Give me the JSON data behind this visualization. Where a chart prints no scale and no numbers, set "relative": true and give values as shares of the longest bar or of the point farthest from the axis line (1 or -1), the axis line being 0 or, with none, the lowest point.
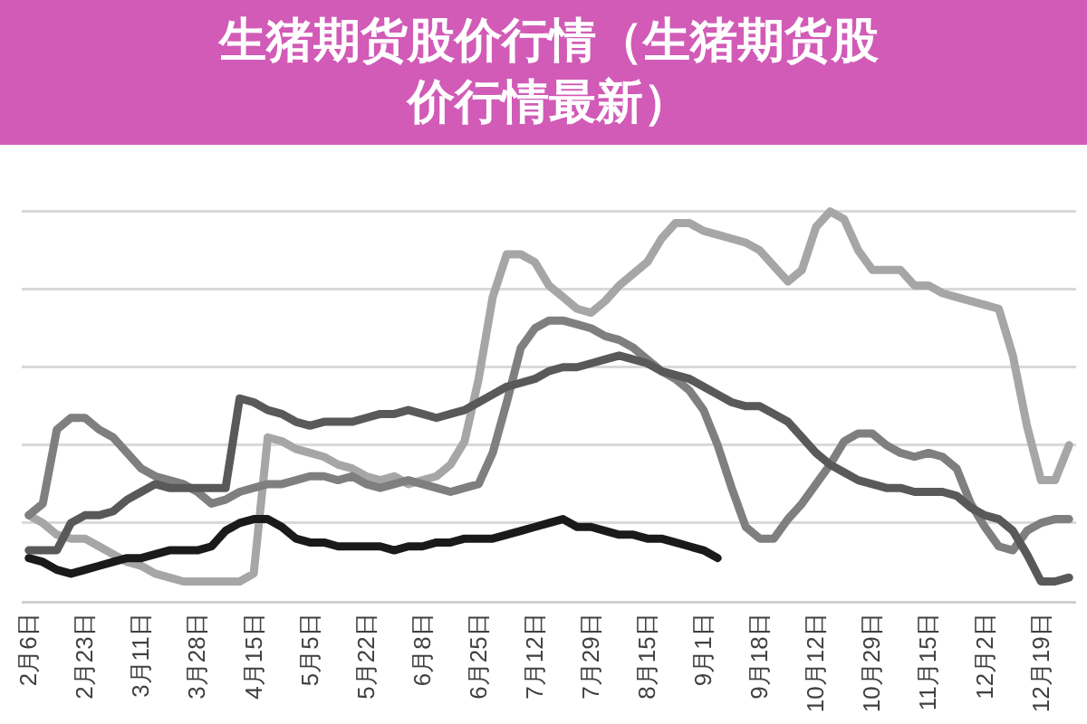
{
  "chart_data": {
    "type": "line",
    "title": "生猪期货股价行情（生猪期货股价行情最新）",
    "categories": [
      "2月6日",
      null,
      null,
      null,
      "2月23日",
      null,
      null,
      null,
      "3月11日",
      null,
      null,
      null,
      "3月28日",
      null,
      null,
      null,
      "4月15日",
      null,
      null,
      null,
      "5月5日",
      null,
      null,
      null,
      "5月22日",
      null,
      null,
      null,
      "6月8日",
      null,
      null,
      null,
      "6月25日",
      null,
      null,
      null,
      "7月12日",
      null,
      null,
      null,
      "7月29日",
      null,
      null,
      null,
      "8月15日",
      null,
      null,
      null,
      "9月1日",
      null,
      null,
      null,
      "9月18日",
      null,
      null,
      null,
      "10月12日",
      null,
      null,
      null,
      "10月29日",
      null,
      null,
      null,
      "11月15日",
      null,
      null,
      null,
      "12月2日",
      null,
      null,
      null,
      "12月19日",
      null,
      null
    ],
    "relative": true,
    "grid": "y",
    "series": [
      {
        "color": "#a6a6a6",
        "values": [
          0.22,
          0.2,
          0.17,
          0.16,
          0.16,
          0.14,
          0.12,
          0.1,
          0.09,
          0.07,
          0.06,
          0.05,
          0.05,
          0.05,
          0.05,
          0.05,
          0.07,
          0.42,
          0.41,
          0.39,
          0.38,
          0.37,
          0.35,
          0.34,
          0.32,
          0.31,
          0.32,
          0.3,
          0.31,
          0.32,
          0.35,
          0.41,
          0.57,
          0.78,
          0.89,
          0.89,
          0.87,
          0.81,
          0.78,
          0.75,
          0.74,
          0.77,
          0.81,
          0.84,
          0.87,
          0.93,
          0.97,
          0.97,
          0.95,
          0.94,
          0.93,
          0.92,
          0.9,
          0.86,
          0.82,
          0.85,
          0.96,
          1.0,
          0.98,
          0.9,
          0.85,
          0.85,
          0.85,
          0.81,
          0.81,
          0.79,
          0.78,
          0.77,
          0.76,
          0.75,
          0.63,
          0.45,
          0.31,
          0.31,
          0.4
        ]
      },
      {
        "color": "#7f7f7f",
        "values": [
          0.22,
          0.25,
          0.44,
          0.47,
          0.47,
          0.44,
          0.42,
          0.38,
          0.34,
          0.32,
          0.31,
          0.3,
          0.28,
          0.25,
          0.26,
          0.28,
          0.29,
          0.3,
          0.3,
          0.31,
          0.32,
          0.32,
          0.31,
          0.32,
          0.3,
          0.29,
          0.3,
          0.31,
          0.3,
          0.29,
          0.28,
          0.29,
          0.3,
          0.38,
          0.51,
          0.65,
          0.7,
          0.72,
          0.72,
          0.71,
          0.7,
          0.68,
          0.67,
          0.65,
          0.62,
          0.59,
          0.57,
          0.54,
          0.49,
          0.4,
          0.29,
          0.19,
          0.16,
          0.16,
          0.21,
          0.25,
          0.3,
          0.35,
          0.41,
          0.43,
          0.43,
          0.4,
          0.38,
          0.37,
          0.38,
          0.37,
          0.34,
          0.25,
          0.19,
          0.14,
          0.13,
          0.18,
          0.2,
          0.21,
          0.21
        ]
      },
      {
        "color": "#595959",
        "values": [
          0.13,
          0.13,
          0.13,
          0.2,
          0.22,
          0.22,
          0.23,
          0.26,
          0.28,
          0.3,
          0.29,
          0.29,
          0.29,
          0.29,
          0.29,
          0.52,
          0.51,
          0.49,
          0.48,
          0.46,
          0.45,
          0.46,
          0.46,
          0.46,
          0.47,
          0.48,
          0.48,
          0.49,
          0.48,
          0.47,
          0.48,
          0.49,
          0.51,
          0.53,
          0.55,
          0.56,
          0.57,
          0.59,
          0.6,
          0.6,
          0.61,
          0.62,
          0.63,
          0.62,
          0.61,
          0.59,
          0.58,
          0.57,
          0.55,
          0.53,
          0.51,
          0.5,
          0.5,
          0.48,
          0.46,
          0.42,
          0.38,
          0.35,
          0.33,
          0.31,
          0.3,
          0.29,
          0.29,
          0.28,
          0.28,
          0.28,
          0.27,
          0.24,
          0.22,
          0.21,
          0.18,
          0.12,
          0.05,
          0.05,
          0.06
        ]
      },
      {
        "color": "#1a1a1a",
        "values": [
          0.11,
          0.1,
          0.08,
          0.07,
          0.08,
          0.09,
          0.1,
          0.11,
          0.11,
          0.12,
          0.13,
          0.13,
          0.13,
          0.14,
          0.18,
          0.2,
          0.21,
          0.21,
          0.19,
          0.16,
          0.15,
          0.15,
          0.14,
          0.14,
          0.14,
          0.14,
          0.13,
          0.14,
          0.14,
          0.15,
          0.15,
          0.16,
          0.16,
          0.16,
          0.17,
          0.18,
          0.19,
          0.2,
          0.21,
          0.19,
          0.19,
          0.18,
          0.17,
          0.17,
          0.16,
          0.16,
          0.15,
          0.14,
          0.13,
          0.11,
          null,
          null,
          null,
          null,
          null,
          null,
          null,
          null,
          null,
          null,
          null,
          null,
          null,
          null,
          null,
          null,
          null,
          null,
          null,
          null,
          null,
          null,
          null,
          null,
          null
        ]
      }
    ]
  }
}
